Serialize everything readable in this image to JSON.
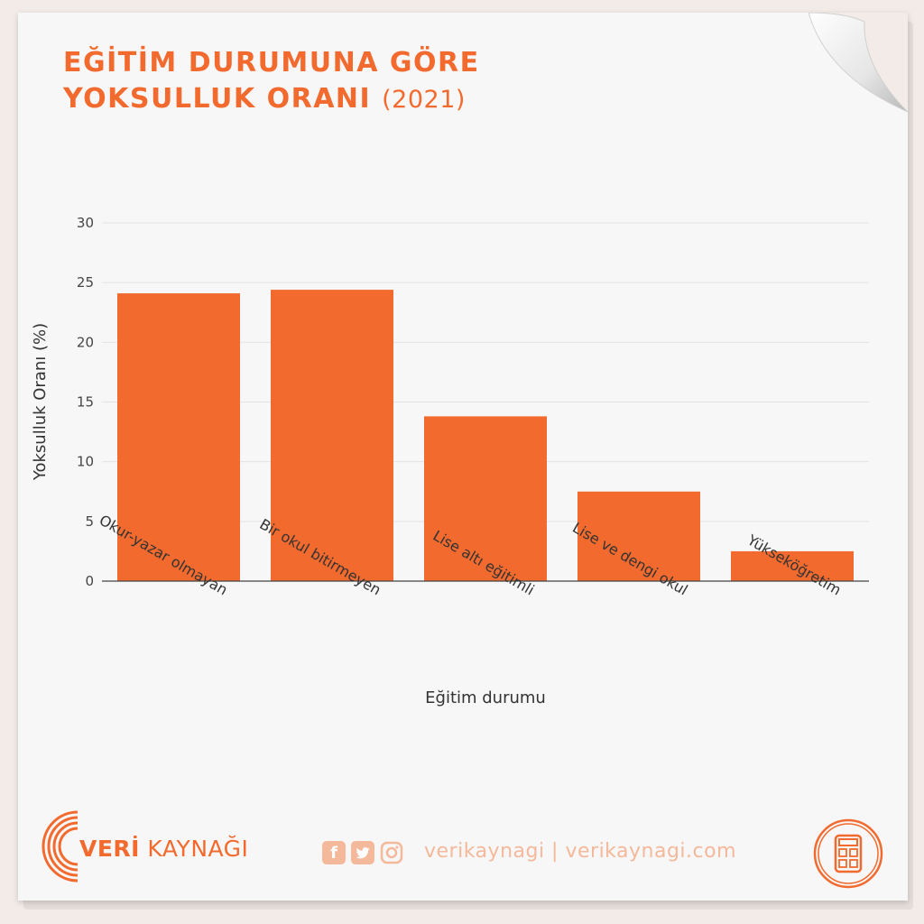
{
  "header": {
    "title_line1": "EĞİTİM DURUMUNA GÖRE",
    "title_line2": "YOKSULLUK ORANI",
    "title_year": "(2021)"
  },
  "chart_data": {
    "type": "bar",
    "title": "EĞİTİM DURUMUNA GÖRE YOKSULLUK ORANI (2021)",
    "xlabel": "Eğitim durumu",
    "ylabel": "Yoksulluk Oranı (%)",
    "categories": [
      "Okur-yazar olmayan",
      "Bir okul bitirmeyen",
      "Lise altı eğitimli",
      "Lise ve dengi okul",
      "Yükseköğretim"
    ],
    "values": [
      24.1,
      24.4,
      13.8,
      7.5,
      2.5
    ],
    "ylim": [
      0,
      30
    ],
    "yticks": [
      0,
      5,
      10,
      15,
      20,
      25,
      30
    ],
    "grid": true,
    "bar_color": "#f26a2e"
  },
  "footer": {
    "brand_strong": "VERİ",
    "brand_rest": " KAYNAĞI",
    "social_text": "verikaynagi | verikaynagi.com",
    "icons": [
      "facebook-icon",
      "twitter-icon",
      "instagram-icon",
      "calculator-icon"
    ]
  },
  "colors": {
    "accent": "#f26a2e",
    "accent_light": "#f4b89a",
    "background": "#f3ebe8",
    "paper": "#f7f7f7"
  }
}
